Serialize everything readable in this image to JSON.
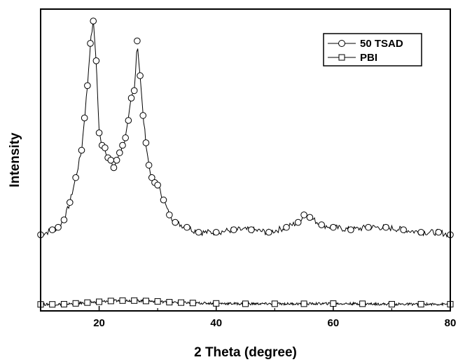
{
  "chart_data": {
    "type": "line",
    "title": "",
    "xlabel": "2 Theta (degree)",
    "ylabel": "Intensity",
    "xlim": [
      10,
      80
    ],
    "ylim": [
      0,
      1
    ],
    "y_ticks_labeled": false,
    "grid": false,
    "legend_position": "top-right",
    "x_ticks": [
      20,
      40,
      60,
      80
    ],
    "series": [
      {
        "name": "50 TSAD",
        "marker": "circle",
        "x": [
          10,
          12,
          13,
          14,
          15,
          16,
          17,
          17.5,
          18,
          18.5,
          19,
          19.5,
          20,
          20.5,
          21,
          21.5,
          22,
          22.5,
          23,
          23.5,
          24,
          24.5,
          25,
          25.5,
          26,
          26.5,
          27,
          27.5,
          28,
          28.5,
          29,
          29.5,
          30,
          31,
          32,
          33,
          35,
          37,
          40,
          43,
          46,
          49,
          52,
          54,
          55,
          56,
          58,
          60,
          63,
          66,
          69,
          72,
          75,
          78,
          80
        ],
        "y": [
          0.14,
          0.16,
          0.17,
          0.2,
          0.27,
          0.37,
          0.48,
          0.61,
          0.74,
          0.91,
          1.0,
          0.84,
          0.55,
          0.5,
          0.49,
          0.45,
          0.44,
          0.41,
          0.44,
          0.47,
          0.5,
          0.53,
          0.6,
          0.69,
          0.72,
          0.92,
          0.78,
          0.62,
          0.51,
          0.42,
          0.37,
          0.35,
          0.34,
          0.28,
          0.22,
          0.19,
          0.17,
          0.15,
          0.15,
          0.16,
          0.16,
          0.15,
          0.17,
          0.19,
          0.22,
          0.21,
          0.18,
          0.17,
          0.16,
          0.17,
          0.17,
          0.16,
          0.15,
          0.15,
          0.14
        ]
      },
      {
        "name": "PBI",
        "marker": "square",
        "x": [
          10,
          12,
          14,
          16,
          18,
          20,
          22,
          24,
          26,
          28,
          30,
          32,
          34,
          36,
          40,
          45,
          50,
          55,
          60,
          65,
          70,
          75,
          80
        ],
        "y": [
          0.005,
          0.005,
          0.01,
          0.03,
          0.05,
          0.07,
          0.09,
          0.1,
          0.1,
          0.09,
          0.08,
          0.06,
          0.05,
          0.04,
          0.03,
          0.02,
          0.02,
          0.02,
          0.025,
          0.02,
          0.01,
          0.01,
          0.01
        ]
      }
    ]
  }
}
